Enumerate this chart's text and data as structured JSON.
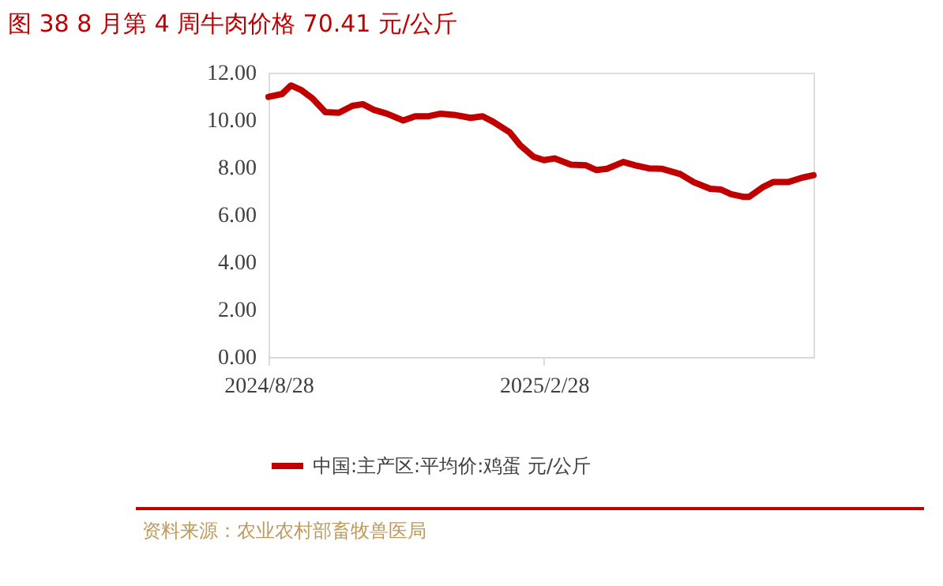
{
  "chart_data": {
    "type": "line",
    "title": "图 38 8 月第 4 周牛肉价格 70.41 元/公斤",
    "x": [
      "2024-08-28",
      "2024-09-06",
      "2024-09-12",
      "2024-09-19",
      "2024-09-26",
      "2024-10-05",
      "2024-10-14",
      "2024-10-23",
      "2024-10-30",
      "2024-11-06",
      "2024-11-15",
      "2024-11-26",
      "2024-12-04",
      "2024-12-13",
      "2024-12-21",
      "2024-12-30",
      "2025-01-10",
      "2025-01-18",
      "2025-01-25",
      "2025-02-05",
      "2025-02-12",
      "2025-02-21",
      "2025-02-28",
      "2025-03-07",
      "2025-03-18",
      "2025-03-28",
      "2025-04-04",
      "2025-04-11",
      "2025-04-22",
      "2025-04-30",
      "2025-05-09",
      "2025-05-18",
      "2025-05-30",
      "2025-06-08",
      "2025-06-19",
      "2025-06-26",
      "2025-07-03",
      "2025-07-11",
      "2025-07-15",
      "2025-07-24",
      "2025-07-31",
      "2025-08-10",
      "2025-08-19",
      "2025-08-27"
    ],
    "series": [
      {
        "name": "中国:主产区:平均价:鸡蛋 元/公斤",
        "color": "#c00000",
        "values": [
          10.98,
          11.1,
          11.46,
          11.26,
          10.93,
          10.33,
          10.31,
          10.6,
          10.67,
          10.44,
          10.27,
          9.98,
          10.16,
          10.16,
          10.27,
          10.22,
          10.09,
          10.16,
          9.93,
          9.49,
          8.94,
          8.45,
          8.31,
          8.38,
          8.12,
          8.09,
          7.89,
          7.94,
          8.23,
          8.09,
          7.96,
          7.94,
          7.72,
          7.38,
          7.1,
          7.07,
          6.87,
          6.76,
          6.76,
          7.16,
          7.38,
          7.38,
          7.56,
          7.67
        ]
      }
    ],
    "xlim": [
      "2024-08-28",
      "2025-08-27"
    ],
    "xticks": [
      {
        "value": "2024-08-28",
        "label": "2024/8/28"
      },
      {
        "value": "2025-02-28",
        "label": "2025/2/28"
      }
    ],
    "ylim": [
      0,
      12
    ],
    "yticks": [
      {
        "value": 0,
        "label": "0.00"
      },
      {
        "value": 2,
        "label": "2.00"
      },
      {
        "value": 4,
        "label": "4.00"
      },
      {
        "value": 6,
        "label": "6.00"
      },
      {
        "value": 8,
        "label": "8.00"
      },
      {
        "value": 10,
        "label": "10.00"
      },
      {
        "value": 12,
        "label": "12.00"
      }
    ],
    "grid": false,
    "legend": "bottom",
    "line_style": "solid",
    "marker": "none",
    "annotations": [
      "资料来源：农业农村部畜牧兽医局"
    ]
  }
}
